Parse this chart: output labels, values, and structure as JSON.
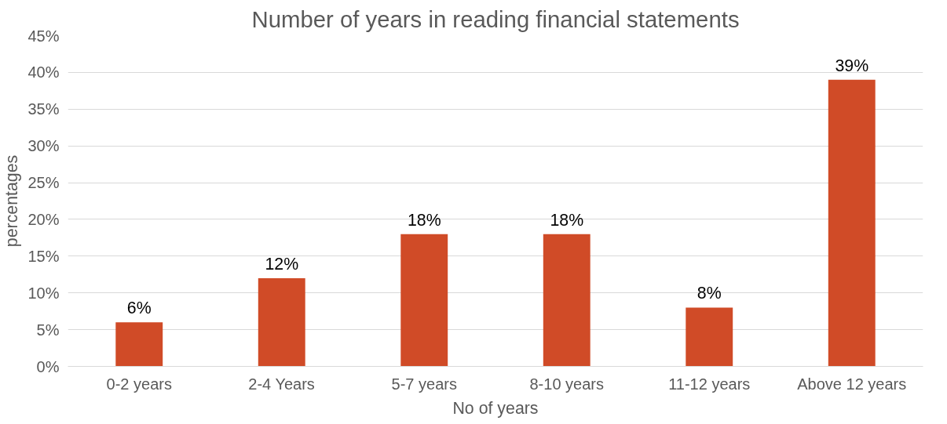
{
  "chart_data": {
    "type": "bar",
    "title": "Number of years in reading financial statements",
    "xlabel": "No of years",
    "ylabel": "percentages",
    "categories": [
      "0-2 years",
      "2-4 Years",
      "5-7 years",
      "8-10 years",
      "11-12 years",
      "Above 12 years"
    ],
    "values": [
      6,
      12,
      18,
      18,
      8,
      39
    ],
    "value_labels": [
      "6%",
      "12%",
      "18%",
      "18%",
      "8%",
      "39%"
    ],
    "color": "#d04b27",
    "ylim": [
      0,
      45
    ],
    "yticks": [
      {
        "value": 0,
        "label": "0%"
      },
      {
        "value": 5,
        "label": "5%"
      },
      {
        "value": 10,
        "label": "10%"
      },
      {
        "value": 15,
        "label": "15%"
      },
      {
        "value": 20,
        "label": "20%"
      },
      {
        "value": 25,
        "label": "25%"
      },
      {
        "value": 30,
        "label": "30%"
      },
      {
        "value": 35,
        "label": "35%"
      },
      {
        "value": 40,
        "label": "40%"
      },
      {
        "value": 45,
        "label": "45%"
      }
    ],
    "grid": "y"
  }
}
